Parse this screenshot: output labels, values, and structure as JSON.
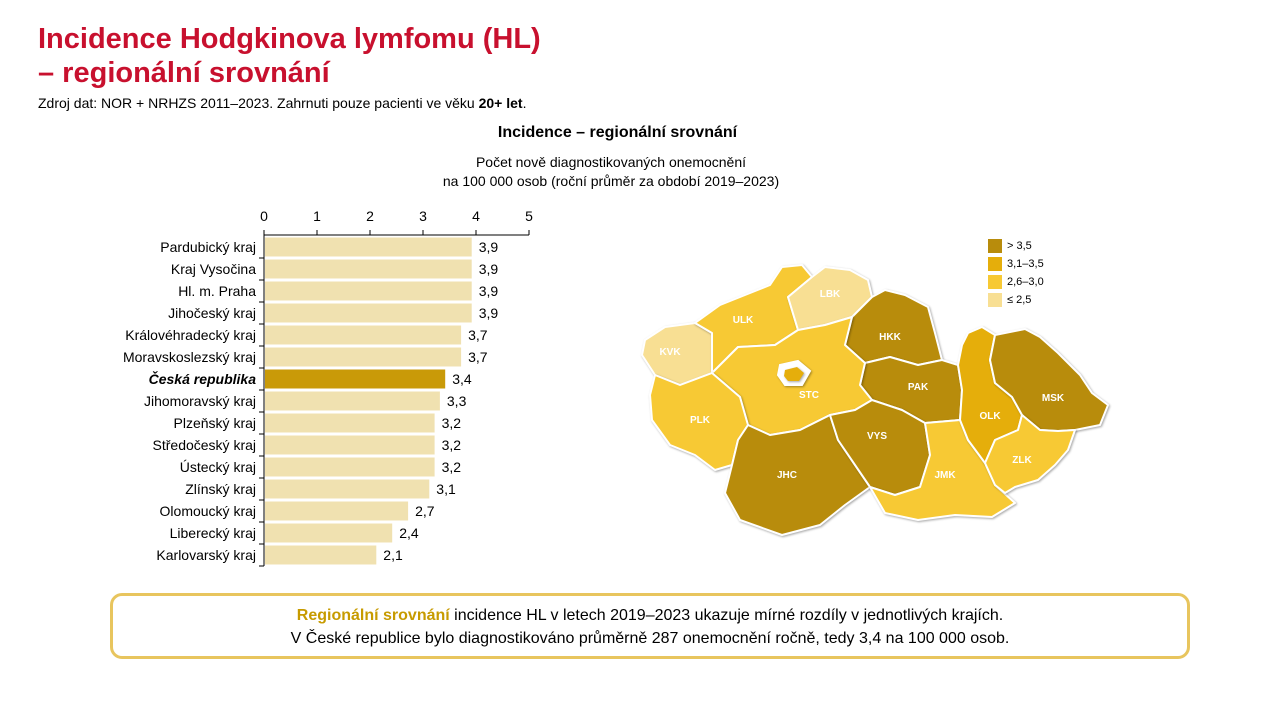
{
  "header": {
    "title_line1": "Incidence Hodgkinova lymfomu (HL)",
    "title_line2": "– regionální srovnání",
    "source_text": "Zdroj dat: NOR + NRHZS 2011–2023. Zahrnuti pouze pacienti ve věku ",
    "source_bold": "20+ let",
    "source_end": "."
  },
  "chart_heading": {
    "title": "Incidence – regionální srovnání",
    "subtitle_line1": "Počet nově diagnostikovaných onemocnění",
    "subtitle_line2": "na 100 000 osob (roční průměr za období 2019–2023)"
  },
  "chart_data": {
    "type": "bar",
    "orientation": "horizontal",
    "xlim": [
      0,
      5
    ],
    "xticks": [
      "0",
      "1",
      "2",
      "3",
      "4",
      "5"
    ],
    "categories": [
      "Pardubický kraj",
      "Kraj Vysočina",
      "Hl. m. Praha",
      "Jihočeský kraj",
      "Královéhradecký kraj",
      "Moravskoslezský kraj",
      "Česká republika",
      "Jihomoravský kraj",
      "Plzeňský kraj",
      "Středočeský kraj",
      "Ústecký kraj",
      "Zlínský kraj",
      "Olomoucký kraj",
      "Liberecký kraj",
      "Karlovarský kraj"
    ],
    "values": [
      3.9,
      3.9,
      3.9,
      3.9,
      3.7,
      3.7,
      3.4,
      3.3,
      3.2,
      3.2,
      3.2,
      3.1,
      2.7,
      2.4,
      2.1
    ],
    "value_labels": [
      "3,9",
      "3,9",
      "3,9",
      "3,9",
      "3,7",
      "3,7",
      "3,4",
      "3,3",
      "3,2",
      "3,2",
      "3,2",
      "3,1",
      "2,7",
      "2,4",
      "2,1"
    ],
    "highlight_category": "Česká republika",
    "bar_color": "#f0e1b0",
    "highlight_color": "#c99a08",
    "xlabel": "",
    "ylabel": "",
    "grid": false
  },
  "map": {
    "regions": [
      {
        "code": "KVK",
        "cls": 0
      },
      {
        "code": "ULK",
        "cls": 1
      },
      {
        "code": "LBK",
        "cls": 0
      },
      {
        "code": "HKK",
        "cls": 3
      },
      {
        "code": "PAK",
        "cls": 3
      },
      {
        "code": "STC",
        "cls": 1
      },
      {
        "code": "PLK",
        "cls": 1
      },
      {
        "code": "JHC",
        "cls": 3
      },
      {
        "code": "VYS",
        "cls": 3
      },
      {
        "code": "JMK",
        "cls": 1
      },
      {
        "code": "OLK",
        "cls": 2
      },
      {
        "code": "MSK",
        "cls": 3
      },
      {
        "code": "ZLK",
        "cls": 1
      }
    ],
    "legend": [
      {
        "label": "> 3,5",
        "color": "#b88c0c"
      },
      {
        "label": "3,1–3,5",
        "color": "#e5ae0b"
      },
      {
        "label": "2,6–3,0",
        "color": "#f7c934"
      },
      {
        "label": "≤ 2,5",
        "color": "#f8df93"
      }
    ]
  },
  "note": {
    "highlight": "Regionální srovnání",
    "line1_rest": " incidence HL v letech 2019–2023 ukazuje mírné rozdíly v jednotlivých krajích.",
    "line2": "V České republice bylo diagnostikováno průměrně 287 onemocnění ročně, tedy 3,4 na 100 000 osob."
  }
}
